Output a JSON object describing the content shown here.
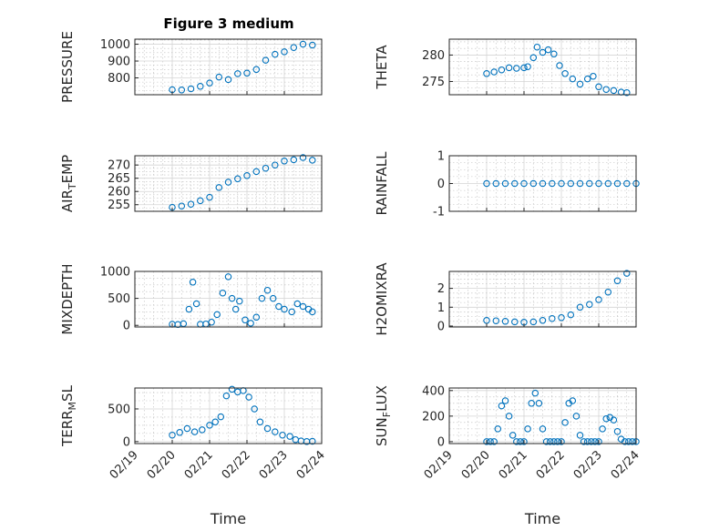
{
  "chart_data": [
    {
      "type": "scatter",
      "title": "Figure 3 medium",
      "ylabel": "PRESSURE",
      "xlim": [
        "02/19",
        "02/24"
      ],
      "ylim": [
        700,
        1030
      ],
      "yticks": [
        800,
        900,
        1000
      ],
      "xticklabels": [],
      "xlabel": "",
      "color": "#0072BD",
      "grid": true,
      "x": [
        1.0,
        1.25,
        1.5,
        1.75,
        2.0,
        2.25,
        2.5,
        2.75,
        3.0,
        3.25,
        3.5,
        3.75,
        4.0,
        4.25,
        4.5,
        4.75
      ],
      "y": [
        730,
        728,
        735,
        750,
        770,
        805,
        790,
        825,
        828,
        850,
        905,
        940,
        955,
        980,
        1000,
        995
      ]
    },
    {
      "type": "scatter",
      "title": "",
      "ylabel": "THETA",
      "xlim": [
        "02/19",
        "02/24"
      ],
      "ylim": [
        272.5,
        283
      ],
      "yticks": [
        275,
        280
      ],
      "xticklabels": [],
      "xlabel": "",
      "color": "#0072BD",
      "grid": true,
      "x": [
        1.0,
        1.2,
        1.4,
        1.6,
        1.8,
        2.0,
        2.1,
        2.25,
        2.35,
        2.5,
        2.65,
        2.8,
        2.95,
        3.1,
        3.3,
        3.5,
        3.7,
        3.85,
        4.0,
        4.2,
        4.4,
        4.6,
        4.75
      ],
      "y": [
        276.5,
        276.8,
        277.2,
        277.6,
        277.5,
        277.6,
        277.8,
        279.5,
        281.5,
        280.5,
        281.0,
        280.2,
        278.0,
        276.5,
        275.5,
        274.5,
        275.5,
        276.0,
        274.0,
        273.5,
        273.3,
        273.0,
        272.9
      ]
    },
    {
      "type": "scatter",
      "title": "",
      "ylabel": "AIR_TEMP",
      "xlim": [
        "02/19",
        "02/24"
      ],
      "ylim": [
        252.5,
        273.5
      ],
      "yticks": [
        255,
        260,
        265,
        270
      ],
      "xticklabels": [],
      "xlabel": "",
      "color": "#0072BD",
      "grid": true,
      "x": [
        1.0,
        1.25,
        1.5,
        1.75,
        2.0,
        2.25,
        2.5,
        2.75,
        3.0,
        3.25,
        3.5,
        3.75,
        4.0,
        4.25,
        4.5,
        4.75
      ],
      "y": [
        254,
        254.5,
        255.2,
        256.5,
        257.8,
        261.5,
        263.5,
        264.8,
        266.0,
        267.5,
        268.8,
        270.0,
        271.5,
        272.0,
        272.8,
        271.8
      ]
    },
    {
      "type": "scatter",
      "title": "",
      "ylabel": "RAINFALL",
      "xlim": [
        "02/19",
        "02/24"
      ],
      "ylim": [
        -1,
        1
      ],
      "yticks": [
        -1,
        0,
        1
      ],
      "xticklabels": [],
      "xlabel": "",
      "color": "#0072BD",
      "grid": true,
      "x": [
        1.0,
        1.25,
        1.5,
        1.75,
        2.0,
        2.25,
        2.5,
        2.75,
        3.0,
        3.25,
        3.5,
        3.75,
        4.0,
        4.25,
        4.5,
        4.75,
        5.0
      ],
      "y": [
        0,
        0,
        0,
        0,
        0,
        0,
        0,
        0,
        0,
        0,
        0,
        0,
        0,
        0,
        0,
        0,
        0
      ]
    },
    {
      "type": "scatter",
      "title": "",
      "ylabel": "MIXDEPTH",
      "xlim": [
        "02/19",
        "02/24"
      ],
      "ylim": [
        -30,
        1000
      ],
      "yticks": [
        0,
        500,
        1000
      ],
      "xticklabels": [],
      "xlabel": "",
      "color": "#0072BD",
      "grid": true,
      "x": [
        1.0,
        1.15,
        1.3,
        1.45,
        1.55,
        1.65,
        1.75,
        1.9,
        2.05,
        2.2,
        2.35,
        2.5,
        2.6,
        2.7,
        2.8,
        2.95,
        3.1,
        3.25,
        3.4,
        3.55,
        3.7,
        3.85,
        4.0,
        4.2,
        4.35,
        4.5,
        4.65,
        4.75
      ],
      "y": [
        20,
        15,
        30,
        300,
        800,
        400,
        20,
        25,
        60,
        200,
        600,
        900,
        500,
        300,
        450,
        100,
        40,
        150,
        500,
        650,
        500,
        350,
        300,
        250,
        400,
        350,
        300,
        250
      ]
    },
    {
      "type": "scatter",
      "title": "",
      "ylabel": "H2OMIXRA",
      "xlim": [
        "02/19",
        "02/24"
      ],
      "ylim": [
        -0.05,
        2.9
      ],
      "yticks": [
        0,
        1,
        2
      ],
      "xticklabels": [],
      "xlabel": "",
      "color": "#0072BD",
      "grid": true,
      "x": [
        1.0,
        1.25,
        1.5,
        1.75,
        2.0,
        2.25,
        2.5,
        2.75,
        3.0,
        3.25,
        3.5,
        3.75,
        4.0,
        4.25,
        4.5,
        4.75
      ],
      "y": [
        0.3,
        0.28,
        0.25,
        0.22,
        0.2,
        0.22,
        0.3,
        0.4,
        0.45,
        0.6,
        1.0,
        1.15,
        1.4,
        1.8,
        2.4,
        2.8
      ]
    },
    {
      "type": "scatter",
      "title": "",
      "ylabel": "TERR_MSL",
      "xlim": [
        "02/19",
        "02/24"
      ],
      "ylim": [
        -30,
        820
      ],
      "yticks": [
        0,
        500
      ],
      "xticklabels": [
        "02/19",
        "02/20",
        "02/21",
        "02/22",
        "02/23",
        "02/24"
      ],
      "xlabel": "Time",
      "color": "#0072BD",
      "grid": true,
      "x": [
        1.0,
        1.2,
        1.4,
        1.6,
        1.8,
        2.0,
        2.15,
        2.3,
        2.45,
        2.6,
        2.75,
        2.9,
        3.05,
        3.2,
        3.35,
        3.55,
        3.75,
        3.95,
        4.15,
        4.3,
        4.45,
        4.6,
        4.75
      ],
      "y": [
        100,
        140,
        200,
        150,
        180,
        250,
        300,
        380,
        700,
        800,
        760,
        780,
        680,
        500,
        300,
        200,
        150,
        100,
        80,
        30,
        10,
        0,
        5
      ]
    },
    {
      "type": "scatter",
      "title": "",
      "ylabel": "SUN_FLUX",
      "xlim": [
        "02/19",
        "02/24"
      ],
      "ylim": [
        -15,
        420
      ],
      "yticks": [
        0,
        200,
        400
      ],
      "xticklabels": [
        "02/19",
        "02/20",
        "02/21",
        "02/22",
        "02/23",
        "02/24"
      ],
      "xlabel": "Time",
      "color": "#0072BD",
      "grid": true,
      "x": [
        1.0,
        1.1,
        1.2,
        1.3,
        1.4,
        1.5,
        1.6,
        1.7,
        1.8,
        1.9,
        2.0,
        2.1,
        2.2,
        2.3,
        2.4,
        2.5,
        2.6,
        2.7,
        2.8,
        2.9,
        3.0,
        3.1,
        3.2,
        3.3,
        3.4,
        3.5,
        3.6,
        3.7,
        3.8,
        3.9,
        4.0,
        4.1,
        4.2,
        4.3,
        4.4,
        4.5,
        4.6,
        4.7,
        4.8,
        4.9,
        5.0
      ],
      "y": [
        0,
        0,
        0,
        100,
        280,
        320,
        200,
        50,
        0,
        0,
        0,
        100,
        300,
        380,
        300,
        100,
        0,
        0,
        0,
        0,
        0,
        150,
        300,
        320,
        200,
        50,
        0,
        0,
        0,
        0,
        0,
        100,
        180,
        190,
        170,
        80,
        20,
        0,
        0,
        0,
        0
      ]
    }
  ]
}
